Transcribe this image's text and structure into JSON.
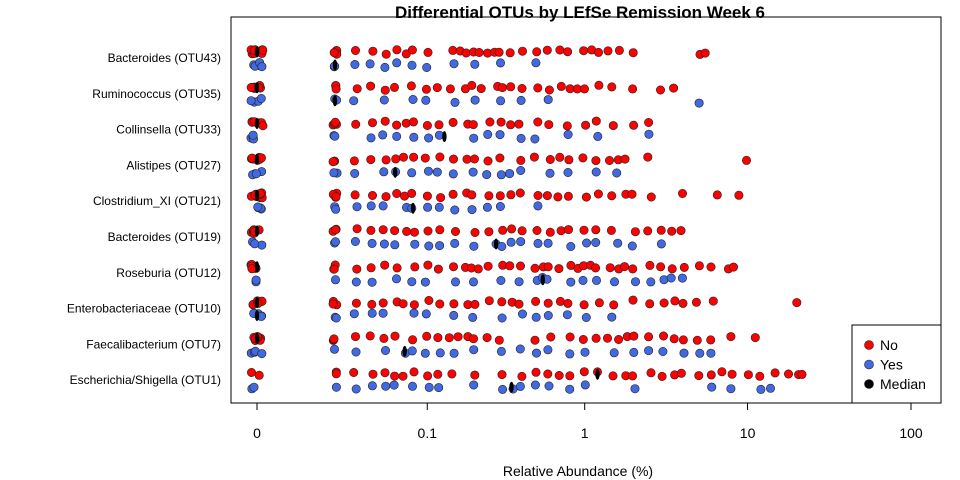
{
  "chart_data": {
    "type": "scatter",
    "title": "Differential OTUs by LEfSe Remission Week 6",
    "xlabel": "Relative Abundance (%)",
    "ylabel": "",
    "x_scale": "log1p",
    "x_ticks": [
      0,
      0.1,
      1,
      10,
      100
    ],
    "x_tick_labels": [
      "0",
      "0.1",
      "1",
      "10",
      "100"
    ],
    "xlim": [
      0,
      100
    ],
    "categories": [
      "Bacteroides (OTU43)",
      "Ruminococcus (OTU35)",
      "Collinsella (OTU33)",
      "Alistipes (OTU27)",
      "Clostridium_XI (OTU21)",
      "Bacteroides (OTU19)",
      "Roseburia (OTU12)",
      "Enterobacteriaceae (OTU10)",
      "Faecalibacterium (OTU7)",
      "Escherichia/Shigella (OTU1)"
    ],
    "series": [
      {
        "name": "No",
        "color": "#FF0000",
        "values": [
          [
            0,
            0,
            0,
            0,
            0,
            0,
            0,
            0,
            0,
            0,
            0.02,
            0.02,
            0.02,
            0.02,
            0.03,
            0.04,
            0.05,
            0.06,
            0.07,
            0.08,
            0.1,
            0.15,
            0.16,
            0.18,
            0.2,
            0.22,
            0.25,
            0.28,
            0.3,
            0.35,
            0.4,
            0.5,
            0.6,
            0.7,
            0.8,
            1.0,
            1.1,
            1.2,
            1.4,
            1.6,
            2.0,
            5.0,
            5.5
          ],
          [
            0,
            0,
            0,
            0,
            0,
            0,
            0,
            0,
            0,
            0.02,
            0.02,
            0.02,
            0.03,
            0.04,
            0.05,
            0.06,
            0.08,
            0.1,
            0.12,
            0.14,
            0.18,
            0.2,
            0.22,
            0.28,
            0.3,
            0.35,
            0.4,
            0.5,
            0.6,
            0.7,
            0.8,
            0.9,
            1.0,
            1.2,
            1.5,
            2.0,
            3.0,
            3.5
          ],
          [
            0,
            0,
            0,
            0,
            0,
            0,
            0,
            0,
            0.02,
            0.02,
            0.02,
            0.02,
            0.03,
            0.04,
            0.05,
            0.06,
            0.07,
            0.08,
            0.1,
            0.12,
            0.15,
            0.18,
            0.2,
            0.25,
            0.3,
            0.35,
            0.4,
            0.5,
            0.6,
            0.8,
            1.0,
            1.2,
            1.5,
            2.0,
            2.5
          ],
          [
            0,
            0,
            0,
            0,
            0,
            0,
            0,
            0,
            0.02,
            0.02,
            0.02,
            0.03,
            0.04,
            0.05,
            0.06,
            0.07,
            0.08,
            0.1,
            0.12,
            0.15,
            0.18,
            0.2,
            0.25,
            0.3,
            0.4,
            0.5,
            0.6,
            0.7,
            0.8,
            1.0,
            1.2,
            1.4,
            1.6,
            1.8,
            2.5,
            10.0
          ],
          [
            0,
            0,
            0,
            0,
            0,
            0,
            0,
            0,
            0,
            0.02,
            0.02,
            0.02,
            0.02,
            0.03,
            0.04,
            0.05,
            0.06,
            0.07,
            0.08,
            0.1,
            0.12,
            0.15,
            0.18,
            0.2,
            0.25,
            0.3,
            0.35,
            0.4,
            0.5,
            0.6,
            0.7,
            0.8,
            1.0,
            1.2,
            1.5,
            1.8,
            2.0,
            2.5,
            4.0,
            6.5,
            9.0
          ],
          [
            0,
            0,
            0,
            0,
            0,
            0,
            0,
            0,
            0.02,
            0.02,
            0.02,
            0.03,
            0.04,
            0.05,
            0.06,
            0.07,
            0.08,
            0.1,
            0.12,
            0.15,
            0.2,
            0.25,
            0.3,
            0.35,
            0.4,
            0.5,
            0.6,
            0.7,
            0.8,
            1.0,
            1.2,
            1.5,
            2.0,
            2.5,
            3.0,
            3.5,
            4.0
          ],
          [
            0,
            0,
            0,
            0,
            0,
            0,
            0,
            0,
            0.02,
            0.02,
            0.02,
            0.03,
            0.04,
            0.05,
            0.06,
            0.08,
            0.1,
            0.12,
            0.15,
            0.18,
            0.2,
            0.22,
            0.25,
            0.3,
            0.35,
            0.4,
            0.5,
            0.55,
            0.6,
            0.7,
            0.8,
            0.9,
            1.0,
            1.1,
            1.2,
            1.4,
            1.6,
            1.8,
            2.0,
            2.5,
            3.0,
            3.5,
            4.0,
            5.0,
            6.0,
            7.5,
            8.0
          ],
          [
            0,
            0,
            0,
            0,
            0,
            0,
            0,
            0,
            0.02,
            0.02,
            0.02,
            0.03,
            0.04,
            0.05,
            0.06,
            0.07,
            0.08,
            0.1,
            0.12,
            0.15,
            0.18,
            0.2,
            0.25,
            0.3,
            0.35,
            0.4,
            0.5,
            0.6,
            0.7,
            0.8,
            1.0,
            1.2,
            1.5,
            2.0,
            2.5,
            3.0,
            3.5,
            4.0,
            5.0,
            6.0,
            20.0
          ],
          [
            0,
            0,
            0,
            0,
            0,
            0,
            0,
            0,
            0.02,
            0.02,
            0.02,
            0.03,
            0.04,
            0.05,
            0.06,
            0.08,
            0.1,
            0.12,
            0.14,
            0.16,
            0.18,
            0.2,
            0.25,
            0.3,
            0.5,
            0.6,
            0.8,
            1.0,
            1.2,
            1.4,
            1.6,
            1.8,
            2.0,
            2.5,
            3.0,
            3.5,
            4.0,
            5.0,
            6.0,
            8.0,
            11.0
          ],
          [
            0,
            0,
            0.02,
            0.02,
            0.03,
            0.04,
            0.05,
            0.06,
            0.07,
            0.08,
            0.1,
            0.12,
            0.15,
            0.2,
            0.3,
            0.4,
            0.5,
            0.6,
            0.7,
            0.8,
            1.0,
            1.2,
            1.5,
            1.8,
            2.0,
            2.5,
            3.0,
            3.5,
            4.0,
            5.0,
            6.0,
            7.0,
            8.0,
            10.0,
            12.0,
            15.0,
            18.0,
            20.0,
            22.0
          ]
        ]
      },
      {
        "name": "Yes",
        "color": "#4169E1",
        "values": [
          [
            0,
            0,
            0,
            0,
            0,
            0.02,
            0.02,
            0.03,
            0.04,
            0.05,
            0.06,
            0.08,
            0.1,
            0.15,
            0.2,
            0.3,
            0.5
          ],
          [
            0,
            0,
            0,
            0,
            0.02,
            0.02,
            0.03,
            0.05,
            0.08,
            0.1,
            0.15,
            0.2,
            0.3,
            0.4,
            0.6,
            5.0
          ],
          [
            0,
            0,
            0,
            0,
            0.02,
            0.02,
            0.04,
            0.05,
            0.06,
            0.08,
            0.1,
            0.12,
            0.2,
            0.25,
            0.3,
            0.4,
            0.5,
            0.8,
            1.2,
            2.5
          ],
          [
            0,
            0,
            0,
            0,
            0.02,
            0.02,
            0.03,
            0.05,
            0.06,
            0.08,
            0.1,
            0.12,
            0.15,
            0.2,
            0.25,
            0.3,
            0.35,
            0.4,
            0.6,
            0.8,
            1.2,
            1.6
          ],
          [
            0,
            0,
            0,
            0,
            0.02,
            0.02,
            0.03,
            0.04,
            0.05,
            0.07,
            0.08,
            0.1,
            0.12,
            0.15,
            0.2,
            0.25,
            0.3,
            0.5
          ],
          [
            0,
            0,
            0,
            0.02,
            0.02,
            0.03,
            0.04,
            0.05,
            0.06,
            0.08,
            0.1,
            0.12,
            0.15,
            0.2,
            0.28,
            0.3,
            0.35,
            0.4,
            0.5,
            0.6,
            0.8,
            1.0,
            1.2,
            1.6,
            2.0,
            3.0
          ],
          [
            0,
            0,
            0.02,
            0.03,
            0.04,
            0.06,
            0.08,
            0.1,
            0.15,
            0.2,
            0.3,
            0.4,
            0.5,
            0.55,
            0.6,
            0.8,
            1.0,
            1.2,
            1.5,
            2.0,
            2.5,
            3.0,
            3.5,
            4.0
          ],
          [
            0,
            0,
            0,
            0,
            0,
            0.02,
            0.02,
            0.03,
            0.04,
            0.05,
            0.08,
            0.1,
            0.15,
            0.2,
            0.3,
            0.4,
            0.5,
            0.6,
            0.8,
            1.0,
            1.5
          ],
          [
            0,
            0,
            0,
            0,
            0.02,
            0.03,
            0.05,
            0.07,
            0.08,
            0.1,
            0.12,
            0.15,
            0.2,
            0.3,
            0.4,
            0.5,
            0.6,
            0.8,
            1.0,
            1.5,
            2.0,
            2.5,
            3.0,
            4.0,
            5.0,
            6.0
          ],
          [
            0,
            0,
            0.02,
            0.03,
            0.04,
            0.05,
            0.06,
            0.08,
            0.1,
            0.12,
            0.2,
            0.3,
            0.35,
            0.4,
            0.5,
            0.6,
            0.8,
            1.0,
            2.0,
            6.0,
            8.0,
            12.0,
            14.0
          ]
        ]
      }
    ],
    "medians": {
      "name": "Median",
      "color": "#000000",
      "no": [
        0,
        0,
        0,
        0,
        0,
        0,
        0,
        0,
        0,
        1.2
      ],
      "yes": [
        0.02,
        0.02,
        0.13,
        0.06,
        0.08,
        0.28,
        0.55,
        0,
        0.07,
        0.35
      ]
    },
    "legend": {
      "position": "bottom-right",
      "labels": [
        "No",
        "Yes",
        "Median"
      ]
    },
    "grid": false
  }
}
